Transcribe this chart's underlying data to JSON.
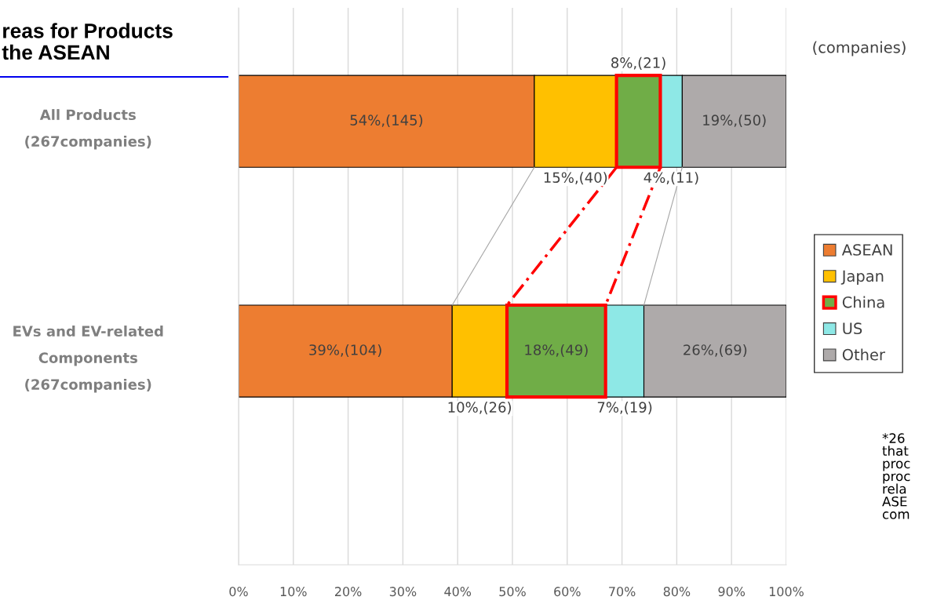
{
  "chart_data": {
    "type": "bar",
    "orientation": "horizontal",
    "stacked": true,
    "title": "reas for Products\nthe ASEAN",
    "categories": [
      "All Products\n(267companies)",
      "EVs and EV-related\nComponents\n(267companies)"
    ],
    "series": [
      {
        "name": "ASEAN",
        "color": "#ed7d31",
        "values": [
          54,
          39
        ],
        "value_labels": [
          "54%,(145)",
          "39%,(104)"
        ]
      },
      {
        "name": "Japan",
        "color": "#ffc000",
        "values": [
          15,
          10
        ],
        "value_labels": [
          "15%,(40)",
          "10%,(26)"
        ]
      },
      {
        "name": "China",
        "color": "#70ad47",
        "values": [
          8,
          18
        ],
        "value_labels": [
          "8%,(21)",
          "18%,(49)"
        ]
      },
      {
        "name": "US",
        "color": "#8ee8e6",
        "values": [
          4,
          7
        ],
        "value_labels": [
          "4%,(11)",
          "7%,(19)"
        ]
      },
      {
        "name": "Other",
        "color": "#aeaaaa",
        "values": [
          19,
          26
        ],
        "value_labels": [
          "19%,(50)",
          "26%,(69)"
        ]
      }
    ],
    "xlim": [
      0,
      100
    ],
    "xticks": [
      {
        "value": 0,
        "label": "0%"
      },
      {
        "value": 10,
        "label": "10%"
      },
      {
        "value": 20,
        "label": "20%"
      },
      {
        "value": 30,
        "label": "30%"
      },
      {
        "value": 40,
        "label": "40%"
      },
      {
        "value": 50,
        "label": "50%"
      },
      {
        "value": 60,
        "label": "60%"
      },
      {
        "value": 70,
        "label": "70%"
      },
      {
        "value": 80,
        "label": "80%"
      },
      {
        "value": 90,
        "label": "90%"
      },
      {
        "value": 100,
        "label": "100%"
      }
    ],
    "grid": "x",
    "legend": "right",
    "annotations": [
      "(companies)",
      "*26\nthat\nproc\nproc\nrela\nASE\ncom"
    ]
  }
}
